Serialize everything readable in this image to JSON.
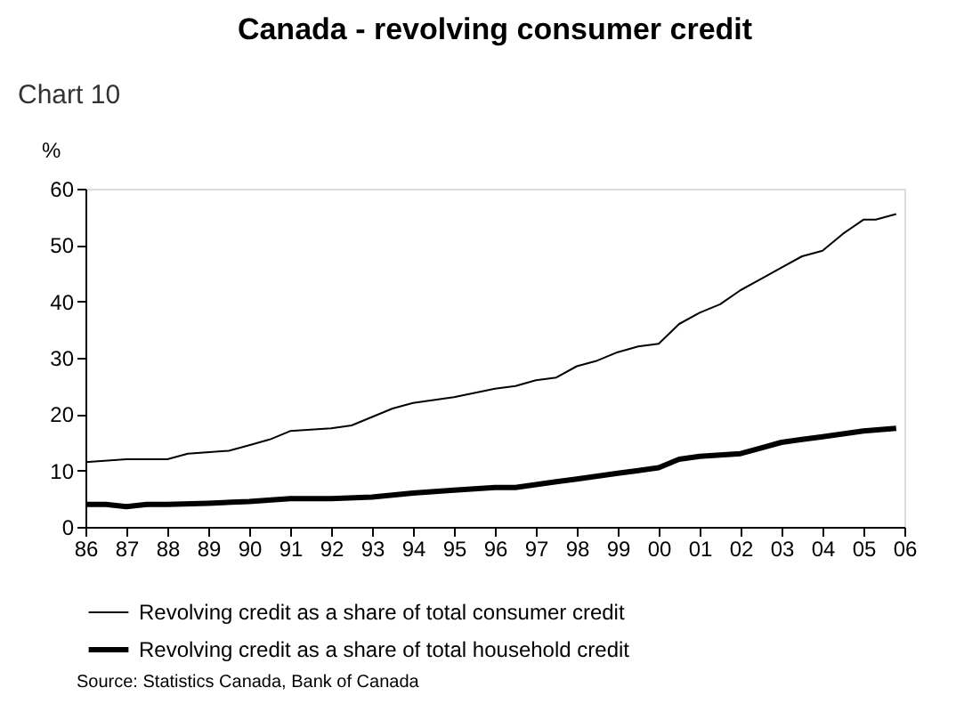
{
  "chart_data": {
    "type": "line",
    "title": "Canada - revolving consumer credit",
    "ylabel": "%",
    "annotations": [
      "Chart 10",
      "Source:  Statistics Canada, Bank of Canada"
    ],
    "xlim": [
      1986,
      2006
    ],
    "ylim": [
      0,
      60
    ],
    "yticks": [
      0,
      10,
      20,
      30,
      40,
      50,
      60
    ],
    "xticks": [
      {
        "value": 1986,
        "label": "86"
      },
      {
        "value": 1987,
        "label": "87"
      },
      {
        "value": 1988,
        "label": "88"
      },
      {
        "value": 1989,
        "label": "89"
      },
      {
        "value": 1990,
        "label": "90"
      },
      {
        "value": 1991,
        "label": "91"
      },
      {
        "value": 1992,
        "label": "92"
      },
      {
        "value": 1993,
        "label": "93"
      },
      {
        "value": 1994,
        "label": "94"
      },
      {
        "value": 1995,
        "label": "95"
      },
      {
        "value": 1996,
        "label": "96"
      },
      {
        "value": 1997,
        "label": "97"
      },
      {
        "value": 1998,
        "label": "98"
      },
      {
        "value": 1999,
        "label": "99"
      },
      {
        "value": 2000,
        "label": "00"
      },
      {
        "value": 2001,
        "label": "01"
      },
      {
        "value": 2002,
        "label": "02"
      },
      {
        "value": 2003,
        "label": "03"
      },
      {
        "value": 2004,
        "label": "04"
      },
      {
        "value": 2005,
        "label": "05"
      },
      {
        "value": 2006,
        "label": "06"
      }
    ],
    "grid": false,
    "legend": "bottom",
    "marker": "none",
    "line_style": "solid",
    "series": [
      {
        "name": "Revolving credit as a share of total consumer credit",
        "color": "#000000",
        "x": [
          1986,
          1987,
          1988,
          1988.5,
          1989.5,
          1990,
          1990.5,
          1991,
          1992,
          1992.5,
          1993,
          1993.5,
          1994,
          1995,
          1996,
          1996.5,
          1997,
          1997.5,
          1998,
          1998.5,
          1999,
          1999.5,
          2000,
          2000.5,
          2001,
          2001.5,
          2002,
          2002.5,
          2003,
          2003.5,
          2004,
          2004.5,
          2005,
          2005.3,
          2005.8
        ],
        "values": [
          11.5,
          12,
          12,
          13,
          13.5,
          14.5,
          15.5,
          17,
          17.5,
          18,
          19.5,
          21,
          22,
          23,
          24.5,
          25,
          26,
          26.5,
          28.5,
          29.5,
          31,
          32,
          32.5,
          36,
          38,
          39.5,
          42,
          44,
          46,
          48,
          49,
          52,
          54.5,
          54.5,
          55.5
        ]
      },
      {
        "name": "Revolving credit as a share of total household credit",
        "color": "#000000",
        "x": [
          1986,
          1986.5,
          1987,
          1987.5,
          1988,
          1989,
          1990,
          1991,
          1992,
          1993,
          1994,
          1995,
          1996,
          1996.5,
          1997,
          1997.5,
          1998,
          1998.5,
          1999,
          1999.5,
          2000,
          2000.5,
          2001,
          2002,
          2002.5,
          2003,
          2003.5,
          2004,
          2004.5,
          2005,
          2005.8
        ],
        "values": [
          4,
          4,
          3.6,
          4,
          4,
          4.2,
          4.5,
          5,
          5,
          5.3,
          6,
          6.5,
          7,
          7,
          7.5,
          8,
          8.5,
          9,
          9.5,
          10,
          10.5,
          12,
          12.5,
          13,
          14,
          15,
          15.5,
          16,
          16.5,
          17,
          17.5
        ]
      }
    ]
  }
}
